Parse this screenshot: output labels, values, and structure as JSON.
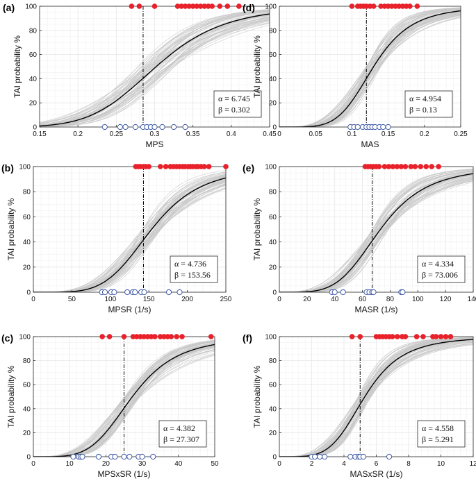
{
  "colors": {
    "curve": "#000000",
    "bootstrap": "#c8c8c8",
    "positive": "#e8212a",
    "negative_stroke": "#3a55a4",
    "grid": "#e6e6e6",
    "threshold": "#000000"
  },
  "chart_data": [
    {
      "panel": "(a)",
      "type": "scatter",
      "xlabel": "MPS",
      "ylabel": "TAI probability %",
      "xlim": [
        0.15,
        0.45
      ],
      "ylim": [
        0,
        100
      ],
      "xticks": [
        "0.15",
        "0.2",
        "0.25",
        "0.3",
        "0.35",
        "0.4",
        "0.45"
      ],
      "xtick_values": [
        0.15,
        0.2,
        0.25,
        0.3,
        0.35,
        0.4,
        0.45
      ],
      "yticks": [
        "0",
        "20",
        "40",
        "60",
        "80",
        "100"
      ],
      "ytick_values": [
        0,
        20,
        40,
        60,
        80,
        100
      ],
      "alpha_text": "α = 6.745",
      "beta_text": "β = 0.302",
      "alpha": 6.745,
      "beta": 0.302,
      "threshold_x": 0.285,
      "positives": [
        0.27,
        0.28,
        0.3,
        0.33,
        0.335,
        0.34,
        0.345,
        0.35,
        0.355,
        0.36,
        0.365,
        0.37,
        0.375,
        0.385,
        0.395,
        0.41
      ],
      "negatives": [
        0.235,
        0.255,
        0.262,
        0.275,
        0.285,
        0.29,
        0.295,
        0.3,
        0.31,
        0.325,
        0.34
      ]
    },
    {
      "panel": "(b)",
      "type": "scatter",
      "xlabel": "MPSR (1/s)",
      "ylabel": "TAI probability %",
      "xlim": [
        0,
        250
      ],
      "ylim": [
        0,
        100
      ],
      "xticks": [
        "0",
        "50",
        "100",
        "150",
        "200",
        "250"
      ],
      "xtick_values": [
        0,
        50,
        100,
        150,
        200,
        250
      ],
      "yticks": [
        "0",
        "20",
        "40",
        "60",
        "80",
        "100"
      ],
      "ytick_values": [
        0,
        20,
        40,
        60,
        80,
        100
      ],
      "alpha_text": "α = 4.736",
      "beta_text": "β = 153.56",
      "alpha": 4.736,
      "beta": 153.56,
      "threshold_x": 143,
      "positives": [
        133,
        136,
        139,
        143,
        146,
        150,
        165,
        172,
        178,
        182,
        186,
        190,
        194,
        197,
        201,
        204,
        207,
        211,
        214,
        218,
        222,
        228,
        250
      ],
      "negatives": [
        89,
        93,
        101,
        105,
        122,
        129,
        132,
        140,
        144,
        176,
        190
      ]
    },
    {
      "panel": "(c)",
      "type": "scatter",
      "xlabel": "MPSxSR (1/s)",
      "ylabel": "TAI probability %",
      "xlim": [
        0,
        50
      ],
      "ylim": [
        0,
        100
      ],
      "xticks": [
        "0",
        "10",
        "20",
        "30",
        "40",
        "50"
      ],
      "xtick_values": [
        0,
        10,
        20,
        30,
        40,
        50
      ],
      "yticks": [
        "0",
        "20",
        "40",
        "60",
        "80",
        "100"
      ],
      "ytick_values": [
        0,
        20,
        40,
        60,
        80,
        100
      ],
      "alpha_text": "α = 4.382",
      "beta_text": "β = 27.307",
      "alpha": 4.382,
      "beta": 27.307,
      "threshold_x": 25,
      "positives": [
        19,
        21,
        25,
        27.5,
        28.5,
        29.5,
        30.5,
        31.5,
        32.5,
        33.5,
        35,
        36,
        37,
        38,
        39.5,
        41,
        49
      ],
      "negatives": [
        11,
        12.5,
        13,
        13.5,
        18,
        21.5,
        22.5,
        25,
        26.5,
        29,
        30,
        33
      ]
    },
    {
      "panel": "(d)",
      "type": "scatter",
      "xlabel": "MAS",
      "ylabel": "TAI probability %",
      "xlim": [
        0,
        0.25
      ],
      "ylim": [
        0,
        100
      ],
      "xticks": [
        "0",
        "0.05",
        "0.1",
        "0.15",
        "0.2",
        "0.25"
      ],
      "xtick_values": [
        0,
        0.05,
        0.1,
        0.15,
        0.2,
        0.25
      ],
      "yticks": [
        "0",
        "20",
        "40",
        "60",
        "80",
        "100"
      ],
      "ytick_values": [
        0,
        20,
        40,
        60,
        80,
        100
      ],
      "alpha_text": "α = 4.954",
      "beta_text": "β = 0.13",
      "alpha": 4.954,
      "beta": 0.13,
      "threshold_x": 0.12,
      "positives": [
        0.1,
        0.108,
        0.112,
        0.116,
        0.12,
        0.125,
        0.13,
        0.14,
        0.145,
        0.15,
        0.155,
        0.16,
        0.165,
        0.17,
        0.175,
        0.18,
        0.19
      ],
      "negatives": [
        0.098,
        0.103,
        0.108,
        0.115,
        0.12,
        0.124,
        0.128,
        0.132,
        0.138,
        0.143,
        0.15
      ]
    },
    {
      "panel": "(e)",
      "type": "scatter",
      "xlabel": "MASR (1/s)",
      "ylabel": "TAI probability %",
      "xlim": [
        0,
        140
      ],
      "ylim": [
        0,
        100
      ],
      "xticks": [
        "0",
        "20",
        "40",
        "60",
        "80",
        "100",
        "120",
        "140"
      ],
      "xtick_values": [
        0,
        20,
        40,
        60,
        80,
        100,
        120,
        140
      ],
      "yticks": [
        "0",
        "20",
        "40",
        "60",
        "80",
        "100"
      ],
      "ytick_values": [
        0,
        20,
        40,
        60,
        80,
        100
      ],
      "alpha_text": "α = 4.334",
      "beta_text": "β = 73.006",
      "alpha": 4.334,
      "beta": 73.006,
      "threshold_x": 67,
      "positives": [
        62,
        64,
        66,
        68,
        70,
        72,
        76,
        79,
        82,
        85,
        88,
        91,
        95,
        98,
        102,
        106,
        110,
        115
      ],
      "negatives": [
        38,
        40,
        46,
        63,
        65,
        67,
        68,
        88,
        89
      ]
    },
    {
      "panel": "(f)",
      "type": "scatter",
      "xlabel": "MASxSR (1/s)",
      "ylabel": "TAI probability %",
      "xlim": [
        0,
        12
      ],
      "ylim": [
        0,
        100
      ],
      "xticks": [
        "0",
        "2",
        "4",
        "6",
        "8",
        "10",
        "12"
      ],
      "xtick_values": [
        0,
        2,
        4,
        6,
        8,
        10,
        12
      ],
      "yticks": [
        "0",
        "20",
        "40",
        "60",
        "80",
        "100"
      ],
      "ytick_values": [
        0,
        20,
        40,
        60,
        80,
        100
      ],
      "alpha_text": "α = 4.558",
      "beta_text": "β = 5.291",
      "alpha": 4.558,
      "beta": 5.291,
      "threshold_x": 5.0,
      "positives": [
        4.5,
        5.0,
        6.0,
        6.2,
        6.4,
        6.6,
        6.8,
        7.0,
        7.3,
        7.6,
        7.8,
        8.5,
        8.9,
        9.5,
        9.7,
        10.0,
        10.3,
        10.6
      ],
      "negatives": [
        2.0,
        2.2,
        2.5,
        2.8,
        4.4,
        4.7,
        4.9,
        5.0,
        5.2,
        6.8
      ]
    }
  ]
}
